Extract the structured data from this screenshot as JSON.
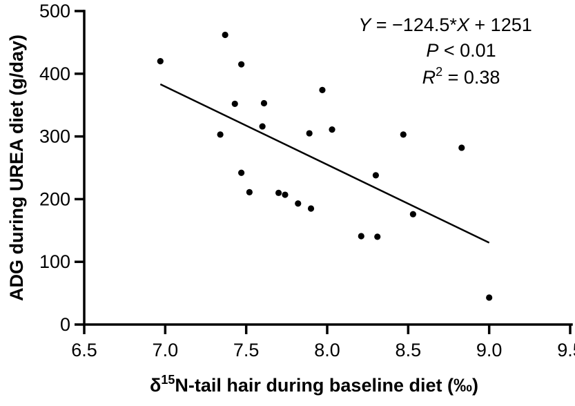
{
  "chart_data": {
    "type": "scatter",
    "xlabel_pre": "δ",
    "xlabel_sup": "15",
    "xlabel_post": "N-tail hair during baseline diet (‰)",
    "ylabel": "ADG during UREA diet (g/day)",
    "xlim": [
      6.5,
      9.5
    ],
    "ylim": [
      0,
      500
    ],
    "xticks": [
      "6.5",
      "7.0",
      "7.5",
      "8.0",
      "8.5",
      "9.0",
      "9.5"
    ],
    "yticks": [
      "0",
      "100",
      "200",
      "300",
      "400",
      "500"
    ],
    "grid": false,
    "points": [
      {
        "x": 6.97,
        "y": 420
      },
      {
        "x": 7.37,
        "y": 462
      },
      {
        "x": 7.47,
        "y": 415
      },
      {
        "x": 7.34,
        "y": 303
      },
      {
        "x": 7.43,
        "y": 352
      },
      {
        "x": 7.47,
        "y": 242
      },
      {
        "x": 7.52,
        "y": 211
      },
      {
        "x": 7.6,
        "y": 316
      },
      {
        "x": 7.61,
        "y": 353
      },
      {
        "x": 7.7,
        "y": 210
      },
      {
        "x": 7.74,
        "y": 207
      },
      {
        "x": 7.82,
        "y": 193
      },
      {
        "x": 7.89,
        "y": 305
      },
      {
        "x": 7.9,
        "y": 185
      },
      {
        "x": 7.97,
        "y": 374
      },
      {
        "x": 8.03,
        "y": 311
      },
      {
        "x": 8.21,
        "y": 141
      },
      {
        "x": 8.3,
        "y": 238
      },
      {
        "x": 8.31,
        "y": 140
      },
      {
        "x": 8.47,
        "y": 303
      },
      {
        "x": 8.53,
        "y": 176
      },
      {
        "x": 8.83,
        "y": 282
      },
      {
        "x": 9.0,
        "y": 43
      }
    ],
    "fit": {
      "slope": -124.5,
      "intercept": 1251,
      "x_range": [
        6.97,
        9.0
      ]
    },
    "annotation": {
      "eq_y": "Y",
      "eq_mid": " = −124.5*",
      "eq_x": "X",
      "eq_end": " + 1251",
      "p_sym": "P",
      "p_rest": " < 0.01",
      "r_sym": "R",
      "r_sup": "2",
      "r_rest": " = 0.38"
    }
  }
}
